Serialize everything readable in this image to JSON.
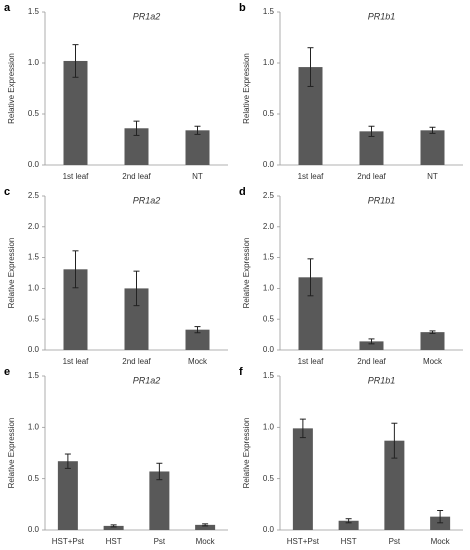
{
  "chart_data": [
    {
      "type": "bar",
      "panel": "a",
      "title": "PR1a2",
      "y_label": "Relative Expression",
      "color": "#595959",
      "categories": [
        "1st leaf",
        "2nd leaf",
        "NT"
      ],
      "values": [
        1.02,
        0.36,
        0.34
      ],
      "errors": [
        0.16,
        0.07,
        0.04
      ],
      "ylim": [
        0,
        1.5
      ],
      "yticks": [
        {
          "value": 0,
          "label": "0.0"
        },
        0.5,
        {
          "value": 1,
          "label": "1.0"
        },
        1.5
      ]
    },
    {
      "type": "bar",
      "panel": "b",
      "title": "PR1b1",
      "y_label": "Relative Expression",
      "color": "#595959",
      "categories": [
        "1st leaf",
        "2nd leaf",
        "NT"
      ],
      "values": [
        0.96,
        0.33,
        0.34
      ],
      "errors": [
        0.19,
        0.05,
        0.03
      ],
      "ylim": [
        0,
        1.5
      ],
      "yticks": [
        {
          "value": 0,
          "label": "0.0"
        },
        0.5,
        {
          "value": 1,
          "label": "1.0"
        },
        1.5
      ]
    },
    {
      "type": "bar",
      "panel": "c",
      "title": "PR1a2",
      "y_label": "Relative Expression",
      "color": "#595959",
      "categories": [
        "1st leaf",
        "2nd leaf",
        "Mock"
      ],
      "values": [
        1.31,
        1.0,
        0.33
      ],
      "errors": [
        0.3,
        0.28,
        0.05
      ],
      "ylim": [
        0,
        2.5
      ],
      "yticks": [
        {
          "value": 0,
          "label": "0.0"
        },
        0.5,
        {
          "value": 1,
          "label": "1.0"
        },
        1.5,
        {
          "value": 2,
          "label": "2.0"
        },
        2.5
      ]
    },
    {
      "type": "bar",
      "panel": "d",
      "title": "PR1b1",
      "y_label": "Relative Expression",
      "color": "#595959",
      "categories": [
        "1st leaf",
        "2nd leaf",
        "Mock"
      ],
      "values": [
        1.18,
        0.14,
        0.29
      ],
      "errors": [
        0.3,
        0.04,
        0.02
      ],
      "ylim": [
        0,
        2.5
      ],
      "yticks": [
        {
          "value": 0,
          "label": "0.0"
        },
        0.5,
        {
          "value": 1,
          "label": "1.0"
        },
        1.5,
        {
          "value": 2,
          "label": "2.0"
        },
        2.5
      ]
    },
    {
      "type": "bar",
      "panel": "e",
      "title": "PR1a2",
      "y_label": "Relative Expression",
      "color": "#595959",
      "categories": [
        "HST+Pst",
        "HST",
        "Pst",
        "Mock"
      ],
      "values": [
        0.67,
        0.04,
        0.57,
        0.05
      ],
      "errors": [
        0.07,
        0.01,
        0.08,
        0.01
      ],
      "ylim": [
        0,
        1.5
      ],
      "yticks": [
        {
          "value": 0,
          "label": "0.0"
        },
        0.5,
        {
          "value": 1,
          "label": "1.0"
        },
        1.5
      ]
    },
    {
      "type": "bar",
      "panel": "f",
      "title": "PR1b1",
      "y_label": "Relative Expression",
      "color": "#595959",
      "categories": [
        "HST+Pst",
        "HST",
        "Pst",
        "Mock"
      ],
      "values": [
        0.99,
        0.09,
        0.87,
        0.13
      ],
      "errors": [
        0.09,
        0.02,
        0.17,
        0.06
      ],
      "ylim": [
        0,
        1.5
      ],
      "yticks": [
        {
          "value": 0,
          "label": "0.0"
        },
        0.5,
        {
          "value": 1,
          "label": "1.0"
        },
        1.5
      ]
    }
  ]
}
